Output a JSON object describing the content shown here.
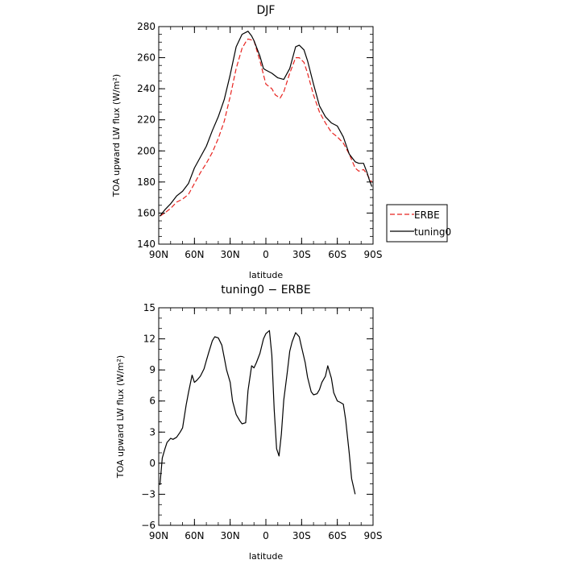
{
  "chart_data": [
    {
      "type": "line",
      "title": "DJF",
      "xlabel": "latitude",
      "ylabel": "TOA upward LW flux (W/m²)",
      "xlim": [
        -90,
        90
      ],
      "ylim": [
        140,
        280
      ],
      "xticks": [
        -90,
        -60,
        -30,
        0,
        30,
        60,
        90
      ],
      "xtick_labels": [
        "90N",
        "60N",
        "30N",
        "0",
        "30S",
        "60S",
        "90S"
      ],
      "yticks": [
        140,
        160,
        180,
        200,
        220,
        240,
        260,
        280
      ],
      "ytick_labels": [
        "140",
        "160",
        "180",
        "200",
        "220",
        "240",
        "260",
        "280"
      ],
      "grid": false,
      "legend_position": "right",
      "series": [
        {
          "name": "ERBE",
          "color": "#e8231f",
          "style": "dashed",
          "x": [
            -89,
            -85,
            -80,
            -75,
            -70,
            -65,
            -60,
            -55,
            -50,
            -45,
            -40,
            -35,
            -30,
            -25,
            -20,
            -17,
            -15,
            -10,
            -7,
            -5,
            0,
            5,
            8,
            12,
            15,
            20,
            25,
            28,
            32,
            35,
            40,
            45,
            50,
            55,
            60,
            65,
            70,
            75,
            78,
            82,
            85,
            87,
            89
          ],
          "y": [
            158,
            160,
            163,
            167,
            169,
            172,
            179,
            186,
            192,
            199,
            208,
            219,
            235,
            253,
            266,
            270,
            272,
            271,
            263,
            258,
            243,
            240,
            236,
            234,
            238,
            250,
            260,
            260,
            257,
            250,
            236,
            225,
            218,
            212,
            209,
            205,
            198,
            189,
            187,
            188,
            185,
            182,
            180
          ]
        },
        {
          "name": "tuning0",
          "color": "#000000",
          "style": "solid",
          "x": [
            -89,
            -85,
            -80,
            -75,
            -70,
            -65,
            -60,
            -55,
            -50,
            -45,
            -40,
            -35,
            -30,
            -25,
            -20,
            -15,
            -12,
            -10,
            -5,
            -2,
            0,
            5,
            10,
            15,
            20,
            25,
            28,
            32,
            35,
            40,
            45,
            50,
            55,
            60,
            65,
            70,
            75,
            78,
            82,
            85,
            87,
            89
          ],
          "y": [
            158,
            162,
            166,
            171,
            174,
            179,
            189,
            196,
            203,
            213,
            222,
            233,
            249,
            267,
            275,
            277,
            274,
            271,
            261,
            253,
            252,
            250,
            247,
            246,
            253,
            267,
            268,
            265,
            258,
            243,
            229,
            222,
            218,
            216,
            209,
            198,
            193,
            192,
            192,
            186,
            181,
            177
          ]
        }
      ]
    },
    {
      "type": "line",
      "title": "tuning0 − ERBE",
      "xlabel": "latitude",
      "ylabel": "TOA upward LW flux (W/m²)",
      "xlim": [
        -90,
        90
      ],
      "ylim": [
        -6,
        15
      ],
      "xticks": [
        -90,
        -60,
        -30,
        0,
        30,
        60,
        90
      ],
      "xtick_labels": [
        "90N",
        "60N",
        "30N",
        "0",
        "30S",
        "60S",
        "90S"
      ],
      "yticks": [
        -6,
        -3,
        0,
        3,
        6,
        9,
        12,
        15
      ],
      "ytick_labels": [
        "−6",
        "−3",
        "0",
        "3",
        "6",
        "9",
        "12",
        "15"
      ],
      "grid": false,
      "series": [
        {
          "color": "#000000",
          "style": "solid",
          "x": [
            -89,
            -87,
            -85,
            -83,
            -80,
            -78,
            -75,
            -72,
            -70,
            -67,
            -65,
            -62,
            -60,
            -58,
            -55,
            -52,
            -50,
            -48,
            -45,
            -43,
            -40,
            -37,
            -35,
            -33,
            -30,
            -28,
            -25,
            -22,
            -20,
            -17,
            -15,
            -12,
            -10,
            -8,
            -5,
            -2,
            0,
            3,
            5,
            7,
            9,
            11,
            13,
            15,
            18,
            20,
            22,
            25,
            28,
            30,
            33,
            35,
            38,
            40,
            43,
            45,
            47,
            50,
            52,
            55,
            57,
            60,
            62,
            65,
            67,
            70,
            72,
            75,
            78,
            80,
            82,
            84,
            86,
            88,
            90
          ],
          "y": [
            -2.1,
            0.5,
            1.3,
            2.0,
            2.4,
            2.3,
            2.5,
            3.0,
            3.4,
            5.6,
            6.8,
            8.5,
            7.8,
            8.0,
            8.4,
            9.1,
            9.9,
            10.7,
            11.8,
            12.2,
            12.1,
            11.4,
            10.2,
            9.0,
            7.8,
            6.0,
            4.7,
            4.1,
            3.8,
            3.9,
            7.0,
            9.4,
            9.2,
            9.7,
            10.6,
            12.0,
            12.5,
            12.8,
            10.4,
            5.2,
            1.4,
            0.7,
            2.8,
            6.1,
            8.8,
            10.8,
            11.7,
            12.6,
            12.2,
            11.2,
            9.7,
            8.3,
            6.9,
            6.6,
            6.7,
            7.1,
            7.8,
            8.4,
            9.4,
            8.2,
            6.8,
            6.0,
            5.9,
            5.7,
            4.2,
            1.0,
            -1.5,
            -3.0,
            null,
            null,
            null,
            null,
            null,
            null,
            null
          ]
        }
      ]
    }
  ]
}
